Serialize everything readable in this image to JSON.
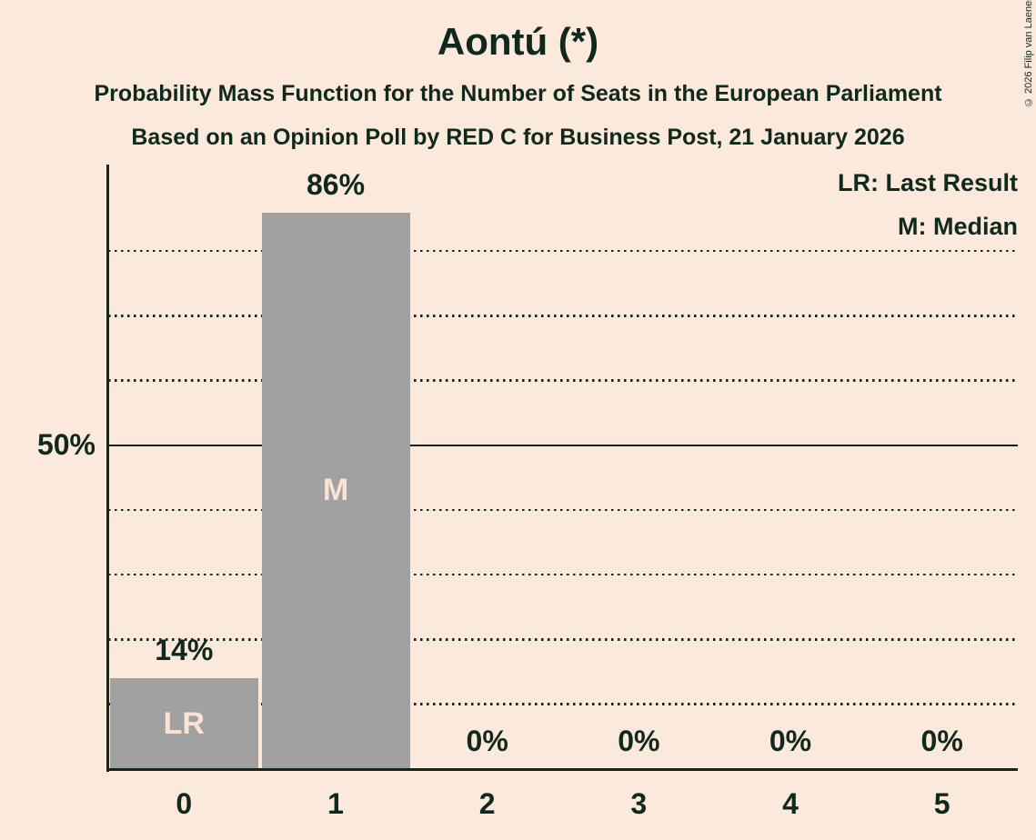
{
  "title": "Aontú (*)",
  "subtitle": "Probability Mass Function for the Number of Seats in the European Parliament",
  "source_line": "Based on an Opinion Poll by RED C for Business Post, 21 January 2026",
  "copyright": "© 2026 Filip van Laenen",
  "legend": {
    "lr": "LR: Last Result",
    "m": "M: Median"
  },
  "colors": {
    "background": "#fbe9dc",
    "bar": "#a1a1a1",
    "text": "#10291c",
    "bar_label_text": "#f9e3d5"
  },
  "chart_data": {
    "type": "bar",
    "title": "Aontú (*)",
    "subtitle": "Probability Mass Function for the Number of Seats in the European Parliament",
    "source": "Based on an Opinion Poll by RED C for Business Post, 21 January 2026",
    "categories": [
      "0",
      "1",
      "2",
      "3",
      "4",
      "5"
    ],
    "values": [
      14,
      86,
      0,
      0,
      0,
      0
    ],
    "value_labels": [
      "14%",
      "86%",
      "0%",
      "0%",
      "0%",
      "0%"
    ],
    "bar_annotations": [
      "LR",
      "M",
      "",
      "",
      "",
      ""
    ],
    "xlabel": "",
    "ylabel": "",
    "ylim": [
      0,
      93.5
    ],
    "y_major_line_pct": 50,
    "y_major_line_label": "50%",
    "dotted_gridlines_pct": [
      10,
      20,
      30,
      40,
      60,
      70,
      80
    ],
    "grid": "dotted horizontal lines every 10%, solid line at 50%",
    "legend_position": "top-right",
    "legend_entries": [
      "LR: Last Result",
      "M: Median"
    ],
    "median_category": "1",
    "last_result_category": "0"
  }
}
